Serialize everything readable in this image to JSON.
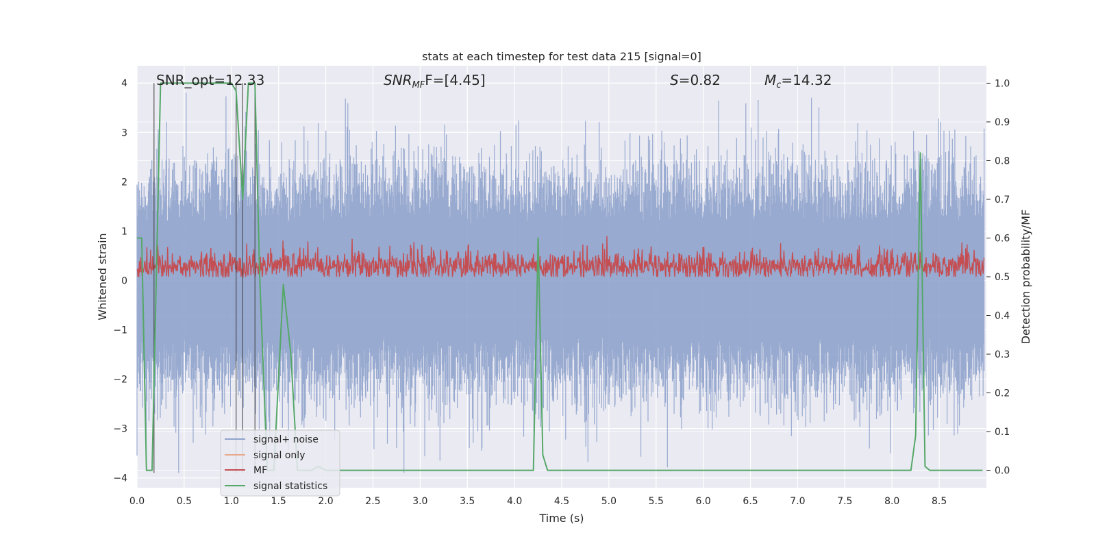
{
  "chart_data": {
    "type": "line",
    "title": "stats at each timestep for test data 215 [signal=0]",
    "xlabel": "Time (s)",
    "ylabel_left": "Whitened strain",
    "ylabel_right": "Detection probability/MF",
    "xlim": [
      0.0,
      9.0
    ],
    "ylim_left": [
      -4.2,
      4.35
    ],
    "ylim_right": [
      -0.045,
      1.045
    ],
    "x_ticks": [
      "0.0",
      "0.5",
      "1.0",
      "1.5",
      "2.0",
      "2.5",
      "3.0",
      "3.5",
      "4.0",
      "4.5",
      "5.0",
      "5.5",
      "6.0",
      "6.5",
      "7.0",
      "7.5",
      "8.0",
      "8.5"
    ],
    "y_ticks_left": [
      "4",
      "3",
      "2",
      "1",
      "0",
      "−1",
      "−2",
      "−3",
      "−4"
    ],
    "y_ticks_right": [
      "1.0",
      "0.9",
      "0.8",
      "0.7",
      "0.6",
      "0.5",
      "0.4",
      "0.3",
      "0.2",
      "0.1",
      "0.0"
    ],
    "grid": true,
    "legend_position": "lower-left",
    "annotations": {
      "snr_opt": "SNR_opt=12.33",
      "snr_mf_label": "SNR",
      "snr_mf_sub": "MF",
      "snr_mf_value": "F=[4.45]",
      "s_label": "S",
      "s_value": "=0.82",
      "mc_label": "M",
      "mc_sub": "c",
      "mc_value": "=14.32"
    },
    "series": [
      {
        "name": "signal+ noise",
        "axis": "left",
        "color": "#8fa3cc",
        "note_values": "noisy trace, approx within [-3.9, 3.8]"
      },
      {
        "name": "signal only",
        "axis": "left",
        "color": "#e8a88a",
        "values": []
      },
      {
        "name": "MF",
        "axis": "right",
        "color": "#c44e52",
        "range": [
          0.5,
          0.6
        ]
      },
      {
        "name": "signal statistics",
        "axis": "right",
        "color": "#55a868",
        "x": [
          0.0,
          0.05,
          0.1,
          0.16,
          0.25,
          1.0,
          1.05,
          1.12,
          1.18,
          1.25,
          1.3,
          1.38,
          1.45,
          1.55,
          1.63,
          1.7,
          1.85,
          1.92,
          2.0,
          2.3,
          4.2,
          4.25,
          4.3,
          4.35,
          4.4,
          8.2,
          8.25,
          8.3,
          8.35,
          8.4,
          8.5,
          8.96
        ],
        "y": [
          0.6,
          0.6,
          0.0,
          0.0,
          1.0,
          1.0,
          0.98,
          0.7,
          1.0,
          1.0,
          0.5,
          0.0,
          0.0,
          0.48,
          0.3,
          0.0,
          0.0,
          0.01,
          0.0,
          0.0,
          0.0,
          0.6,
          0.04,
          0.0,
          0.0,
          0.0,
          0.09,
          0.82,
          0.01,
          0.0,
          0.0,
          0.0
        ]
      }
    ],
    "vlines": [
      0.18,
      1.05,
      1.12,
      1.25
    ],
    "colors": {
      "background": "#eaeaf2",
      "grid": "#ffffff",
      "vline": "#404040"
    }
  }
}
